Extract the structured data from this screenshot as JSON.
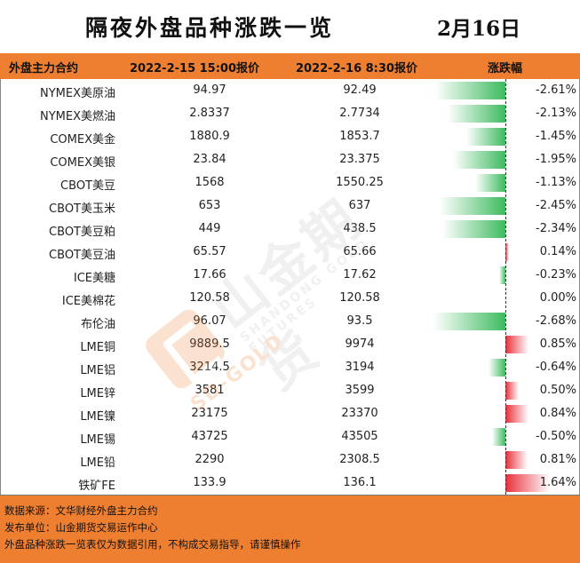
{
  "title": "隔夜外盘品种涨跌一览",
  "date": "2月16日",
  "headers": {
    "name": "外盘主力合约",
    "price1": "2022-2-15 15:00报价",
    "price2": "2022-2-16 8:30报价",
    "change": "涨跌幅"
  },
  "rows": [
    {
      "name": "NYMEX美原油",
      "price1": "94.97",
      "price2": "92.49",
      "change": "-2.61%",
      "value": -2.61
    },
    {
      "name": "NYMEX美燃油",
      "price1": "2.8337",
      "price2": "2.7734",
      "change": "-2.13%",
      "value": -2.13
    },
    {
      "name": "COMEX美金",
      "price1": "1880.9",
      "price2": "1853.7",
      "change": "-1.45%",
      "value": -1.45
    },
    {
      "name": "COMEX美银",
      "price1": "23.84",
      "price2": "23.375",
      "change": "-1.95%",
      "value": -1.95
    },
    {
      "name": "CBOT美豆",
      "price1": "1568",
      "price2": "1550.25",
      "change": "-1.13%",
      "value": -1.13
    },
    {
      "name": "CBOT美玉米",
      "price1": "653",
      "price2": "637",
      "change": "-2.45%",
      "value": -2.45
    },
    {
      "name": "CBOT美豆粕",
      "price1": "449",
      "price2": "438.5",
      "change": "-2.34%",
      "value": -2.34
    },
    {
      "name": "CBOT美豆油",
      "price1": "65.57",
      "price2": "65.66",
      "change": "0.14%",
      "value": 0.14
    },
    {
      "name": "ICE美糖",
      "price1": "17.66",
      "price2": "17.62",
      "change": "-0.23%",
      "value": -0.23
    },
    {
      "name": "ICE美棉花",
      "price1": "120.58",
      "price2": "120.58",
      "change": "0.00%",
      "value": 0.0
    },
    {
      "name": "布伦油",
      "price1": "96.07",
      "price2": "93.5",
      "change": "-2.68%",
      "value": -2.68
    },
    {
      "name": "LME铜",
      "price1": "9889.5",
      "price2": "9974",
      "change": "0.85%",
      "value": 0.85
    },
    {
      "name": "LME铝",
      "price1": "3214.5",
      "price2": "3194",
      "change": "-0.64%",
      "value": -0.64
    },
    {
      "name": "LME锌",
      "price1": "3581",
      "price2": "3599",
      "change": "0.50%",
      "value": 0.5
    },
    {
      "name": "LME镍",
      "price1": "23175",
      "price2": "23370",
      "change": "0.84%",
      "value": 0.84
    },
    {
      "name": "LME锡",
      "price1": "43725",
      "price2": "43505",
      "change": "-0.50%",
      "value": -0.5
    },
    {
      "name": "LME铅",
      "price1": "2290",
      "price2": "2308.5",
      "change": "0.81%",
      "value": 0.81
    },
    {
      "name": "铁矿FE",
      "price1": "133.9",
      "price2": "136.1",
      "change": "1.64%",
      "value": 1.64
    }
  ],
  "footer": {
    "source": "数据来源：文华财经外盘主力合约",
    "publisher": "发布单位：山金期货交易运作中心",
    "disclaimer": "外盘品种涨跌一览表仅为数据引用，不构成交易指导，请谨慎操作"
  },
  "watermark": {
    "brand": "山金期货",
    "sub": "SHANDONG GOLD FUTURES",
    "short": "SD-GOLD"
  },
  "colors": {
    "accent": "#ef7f30",
    "negative": "#3dbb5f",
    "positive": "#e8303a"
  }
}
